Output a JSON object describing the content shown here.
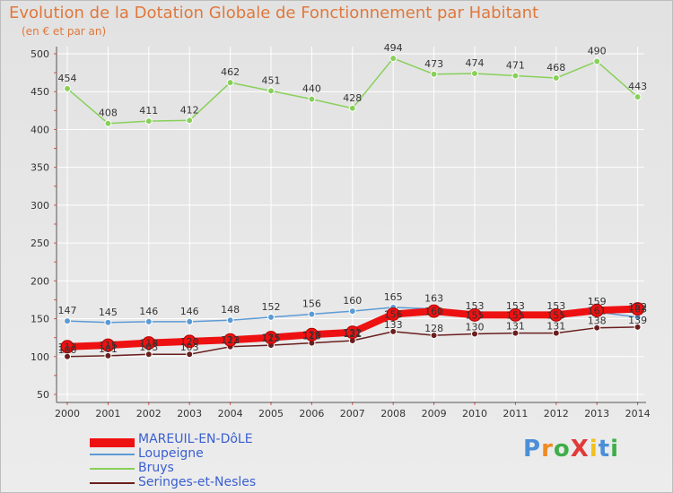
{
  "header": {
    "title": "Evolution de la Dotation Globale de Fonctionnement par Habitant",
    "subtitle": "(en € et par an)"
  },
  "logo": {
    "text": "ProXiti",
    "letters": [
      "P",
      "r",
      "o",
      "X",
      "i",
      "t",
      "i"
    ]
  },
  "colors": {
    "title": "#e0783c",
    "legend_text": "#3a5fd0",
    "grid": "#ffffff",
    "axis_tick": "#e05050"
  },
  "chart_data": {
    "type": "line",
    "title": "Evolution de la Dotation Globale de Fonctionnement par Habitant",
    "subtitle": "(en € et par an)",
    "xlabel": "",
    "ylabel": "",
    "ylim": [
      50,
      500
    ],
    "yticks": [
      50,
      100,
      150,
      200,
      250,
      300,
      350,
      400,
      450,
      500
    ],
    "grid": true,
    "legend_position": "bottom-left",
    "x": [
      "2000",
      "2001",
      "2002",
      "2003",
      "2004",
      "2005",
      "2006",
      "2007",
      "2008",
      "2009",
      "2010",
      "2011",
      "2012",
      "2013",
      "2014"
    ],
    "series": [
      {
        "name": "MAREUIL-EN-DôLE",
        "color": "#ee1111",
        "values": [
          113,
          115,
          118,
          120,
          122,
          125,
          129,
          132,
          156,
          160,
          155,
          155,
          155,
          161,
          163
        ],
        "labels": [
          "113",
          "115",
          "118",
          "120",
          "122",
          "125",
          "129",
          "132",
          "156",
          "160",
          "155",
          "155",
          "155",
          "161",
          "163"
        ]
      },
      {
        "name": "Loupeigne",
        "color": "#5b9bd5",
        "values": [
          147,
          145,
          146,
          146,
          148,
          152,
          156,
          160,
          165,
          163,
          153,
          153,
          153,
          159,
          152
        ],
        "labels": [
          "147",
          "145",
          "146",
          "146",
          "148",
          "152",
          "156",
          "160",
          "165",
          "163",
          "153",
          "153",
          "153",
          "159",
          "152"
        ]
      },
      {
        "name": "Bruys",
        "color": "#88d05a",
        "values": [
          454,
          408,
          411,
          412,
          462,
          451,
          440,
          428,
          494,
          473,
          474,
          471,
          468,
          490,
          443
        ],
        "labels": [
          "454",
          "408",
          "411",
          "412",
          "462",
          "451",
          "440",
          "428",
          "494",
          "473",
          "474",
          "471",
          "468",
          "490",
          "443"
        ]
      },
      {
        "name": "Seringes-et-Nesles",
        "color": "#6a1f1f",
        "values": [
          100,
          101,
          103,
          103,
          113,
          115,
          118,
          121,
          133,
          128,
          130,
          131,
          131,
          138,
          139
        ],
        "labels": [
          "100",
          "101",
          "103",
          "103",
          "113",
          "115",
          "118",
          "121",
          "133",
          "128",
          "130",
          "131",
          "131",
          "138",
          "139"
        ]
      }
    ]
  }
}
